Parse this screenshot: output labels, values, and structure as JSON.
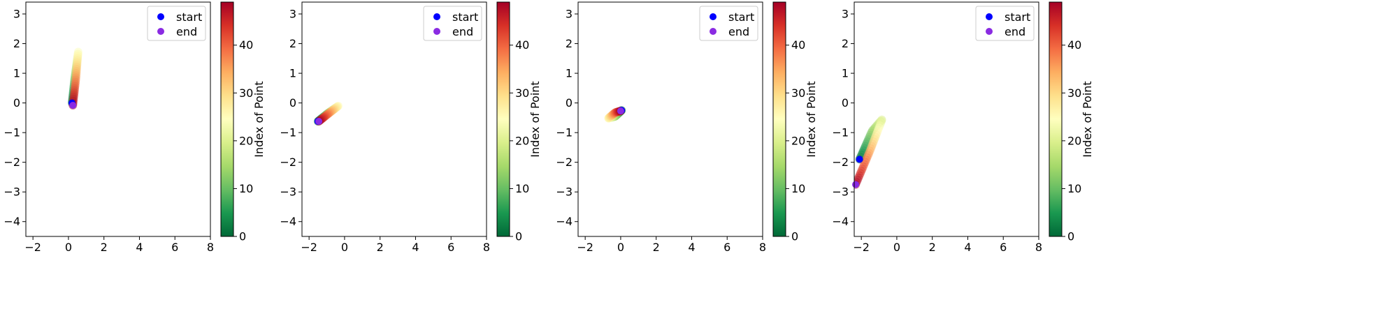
{
  "chart_data": [
    {
      "type": "scatter",
      "title": "",
      "xlabel": "",
      "ylabel": "",
      "xlim": [
        -2.4,
        8
      ],
      "ylim": [
        -4.5,
        3.4
      ],
      "xticks": [
        "−2",
        "0",
        "2",
        "4",
        "6",
        "8"
      ],
      "yticks": [
        "3",
        "2",
        "1",
        "0",
        "−1",
        "−2",
        "−3",
        "−4"
      ],
      "colorbar": {
        "label": "Index of Point",
        "range": [
          0,
          49
        ],
        "ticks": [
          "0",
          "10",
          "20",
          "30",
          "40"
        ]
      },
      "legend": {
        "placement": "top-right",
        "entries": [
          "start",
          "end"
        ]
      },
      "trajectory": {
        "count": 50,
        "path": [
          [
            0.2,
            0.0
          ],
          [
            0.34,
            0.8
          ],
          [
            0.55,
            1.72
          ],
          [
            0.42,
            0.8
          ],
          [
            0.25,
            -0.08
          ]
        ]
      },
      "start": {
        "x": 0.2,
        "y": 0.0
      },
      "end": {
        "x": 0.25,
        "y": -0.08
      }
    },
    {
      "type": "scatter",
      "title": "",
      "xlabel": "",
      "ylabel": "",
      "xlim": [
        -2.4,
        8
      ],
      "ylim": [
        -4.5,
        3.4
      ],
      "xticks": [
        "−2",
        "0",
        "2",
        "4",
        "6",
        "8"
      ],
      "yticks": [
        "3",
        "2",
        "1",
        "0",
        "−1",
        "−2",
        "−3",
        "−4"
      ],
      "colorbar": {
        "label": "Index of Point",
        "range": [
          0,
          49
        ],
        "ticks": [
          "0",
          "10",
          "20",
          "30",
          "40"
        ]
      },
      "legend": {
        "placement": "top-right",
        "entries": [
          "start",
          "end"
        ]
      },
      "trajectory": {
        "count": 50,
        "path": [
          [
            -1.5,
            -0.62
          ],
          [
            -0.95,
            -0.35
          ],
          [
            -0.35,
            -0.1
          ],
          [
            -0.95,
            -0.38
          ],
          [
            -1.45,
            -0.62
          ]
        ]
      },
      "start": {
        "x": -1.5,
        "y": -0.62
      },
      "end": {
        "x": -1.45,
        "y": -0.62
      }
    },
    {
      "type": "scatter",
      "title": "",
      "xlabel": "",
      "ylabel": "",
      "xlim": [
        -2.4,
        8
      ],
      "ylim": [
        -4.5,
        3.4
      ],
      "xticks": [
        "−2",
        "0",
        "2",
        "4",
        "6",
        "8"
      ],
      "yticks": [
        "3",
        "2",
        "1",
        "0",
        "−1",
        "−2",
        "−3",
        "−4"
      ],
      "colorbar": {
        "label": "Index of Point",
        "range": [
          0,
          49
        ],
        "ticks": [
          "0",
          "10",
          "20",
          "30",
          "40"
        ]
      },
      "legend": {
        "placement": "top-right",
        "entries": [
          "start",
          "end"
        ]
      },
      "trajectory": {
        "count": 50,
        "path": [
          [
            0.05,
            -0.25
          ],
          [
            -0.3,
            -0.45
          ],
          [
            -0.7,
            -0.52
          ],
          [
            -0.3,
            -0.32
          ],
          [
            0.0,
            -0.27
          ]
        ]
      },
      "start": {
        "x": 0.05,
        "y": -0.25
      },
      "end": {
        "x": 0.0,
        "y": -0.27
      }
    },
    {
      "type": "scatter",
      "title": "",
      "xlabel": "",
      "ylabel": "",
      "xlim": [
        -2.4,
        8
      ],
      "ylim": [
        -4.5,
        3.4
      ],
      "xticks": [
        "−2",
        "0",
        "2",
        "4",
        "6",
        "8"
      ],
      "yticks": [
        "3",
        "2",
        "1",
        "0",
        "−1",
        "−2",
        "−3",
        "−4"
      ],
      "colorbar": {
        "label": "Index of Point",
        "range": [
          0,
          49
        ],
        "ticks": [
          "0",
          "10",
          "20",
          "30",
          "40"
        ]
      },
      "legend": {
        "placement": "top-right",
        "entries": [
          "start",
          "end"
        ]
      },
      "trajectory": {
        "count": 50,
        "path": [
          [
            -2.1,
            -1.9
          ],
          [
            -1.4,
            -0.95
          ],
          [
            -0.82,
            -0.55
          ],
          [
            -1.5,
            -1.6
          ],
          [
            -2.32,
            -2.75
          ]
        ]
      },
      "start": {
        "x": -2.1,
        "y": -1.9
      },
      "end": {
        "x": -2.32,
        "y": -2.75
      }
    }
  ],
  "colors": {
    "start": "#0000ff",
    "end": "#8a2be2",
    "colormap": [
      "#006837",
      "#1a9850",
      "#66bd63",
      "#a6d96a",
      "#d9ef8b",
      "#ffffbf",
      "#fee08b",
      "#fdae61",
      "#f46d43",
      "#d73027",
      "#a50026"
    ]
  }
}
